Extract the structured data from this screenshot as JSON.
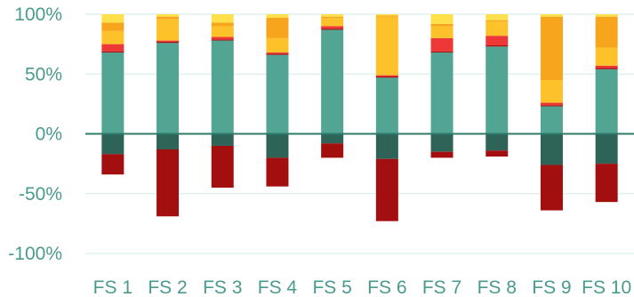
{
  "chart_data": {
    "type": "bar",
    "stacked": true,
    "categories": [
      "FS 1",
      "FS 2",
      "FS 3",
      "FS 4",
      "FS 5",
      "FS 6",
      "FS 7",
      "FS 8",
      "FS 9",
      "FS 10"
    ],
    "yticks": [
      "-100%",
      "-50%",
      "0%",
      "50%",
      "100%"
    ],
    "ylim": [
      -100,
      100
    ],
    "grid": true,
    "legend": "none",
    "positive_series": [
      {
        "color": "#52a493",
        "values": [
          68,
          76,
          78,
          66,
          87,
          47,
          68,
          73,
          23,
          54
        ]
      },
      {
        "color": "#a30f0f",
        "values": [
          1,
          1,
          1,
          1,
          1,
          1,
          1,
          1,
          1,
          1
        ]
      },
      {
        "color": "#ee3838",
        "values": [
          6,
          1,
          2,
          1,
          2,
          1,
          11,
          8,
          2,
          2
        ]
      },
      {
        "color": "#fdc12a",
        "values": [
          11,
          18,
          9,
          12,
          7,
          49,
          10,
          12,
          19,
          15
        ]
      },
      {
        "color": "#f6a51c",
        "values": [
          7,
          2,
          3,
          17,
          1,
          1,
          2,
          1,
          53,
          26
        ]
      },
      {
        "color": "#fde04a",
        "values": [
          7,
          2,
          7,
          3,
          2,
          1,
          8,
          5,
          2,
          2
        ]
      }
    ],
    "negative_series": [
      {
        "color": "#2e6358",
        "values": [
          -17,
          -13,
          -10,
          -20,
          -8,
          -21,
          -15,
          -14,
          -26,
          -25
        ]
      },
      {
        "color": "#a30f0f",
        "values": [
          -17,
          -56,
          -35,
          -24,
          -12,
          -52,
          -5,
          -5,
          -38,
          -32
        ]
      }
    ]
  }
}
